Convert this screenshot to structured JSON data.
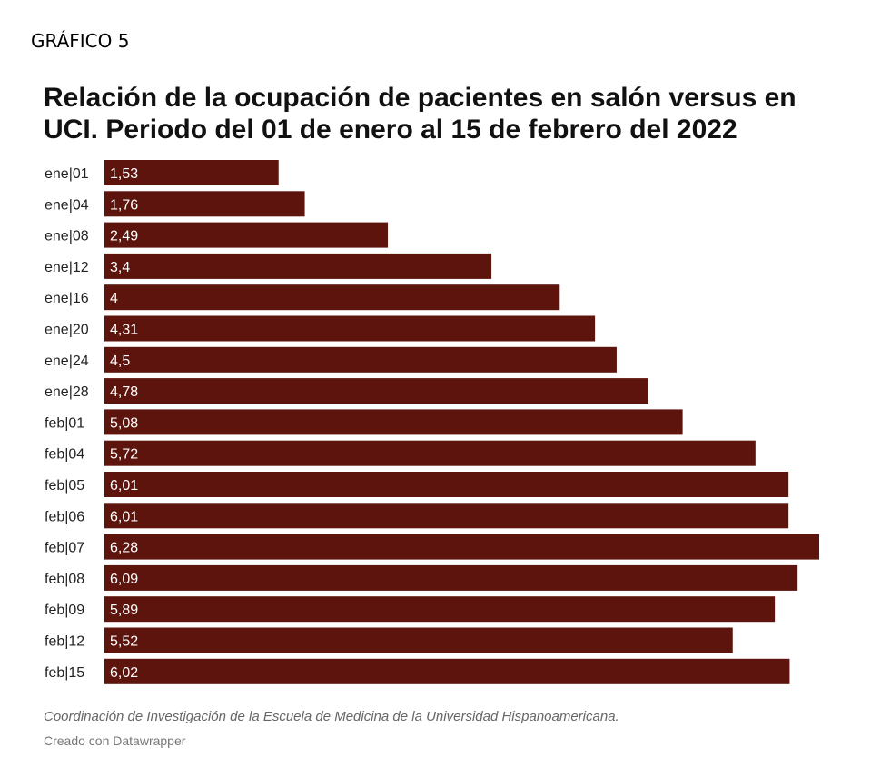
{
  "header": {
    "figure_label": "GRÁFICO 5",
    "title": "Relación de  la ocupación de pacientes en salón versus en UCI. Periodo del 01 de enero al 15 de febrero del 2022"
  },
  "footer": {
    "note": "Coordinación de Investigación de la Escuela de Medicina de la Universidad Hispanoamericana.",
    "credit": "Creado con Datawrapper"
  },
  "colors": {
    "bar": "#5c140d",
    "bar_label": "#ffffff",
    "category_label": "#222222"
  },
  "chart_data": {
    "type": "bar",
    "orientation": "horizontal",
    "title": "Relación de  la ocupación de pacientes en salón versus en UCI. Periodo del 01 de enero al 15 de febrero del 2022",
    "categories": [
      "ene|01",
      "ene|04",
      "ene|08",
      "ene|12",
      "ene|16",
      "ene|20",
      "ene|24",
      "ene|28",
      "feb|01",
      "feb|04",
      "feb|05",
      "feb|06",
      "feb|07",
      "feb|08",
      "feb|09",
      "feb|12",
      "feb|15"
    ],
    "values": [
      1.53,
      1.76,
      2.49,
      3.4,
      4,
      4.31,
      4.5,
      4.78,
      5.08,
      5.72,
      6.01,
      6.01,
      6.28,
      6.09,
      5.89,
      5.52,
      6.02
    ],
    "value_labels": [
      "1,53",
      "1,76",
      "2,49",
      "3,4",
      "4",
      "4,31",
      "4,5",
      "4,78",
      "5,08",
      "5,72",
      "6,01",
      "6,01",
      "6,28",
      "6,09",
      "5,89",
      "5,52",
      "6,02"
    ],
    "xlim": [
      0,
      6.28
    ],
    "grid": false,
    "legend": false,
    "xlabel": "",
    "ylabel": ""
  }
}
